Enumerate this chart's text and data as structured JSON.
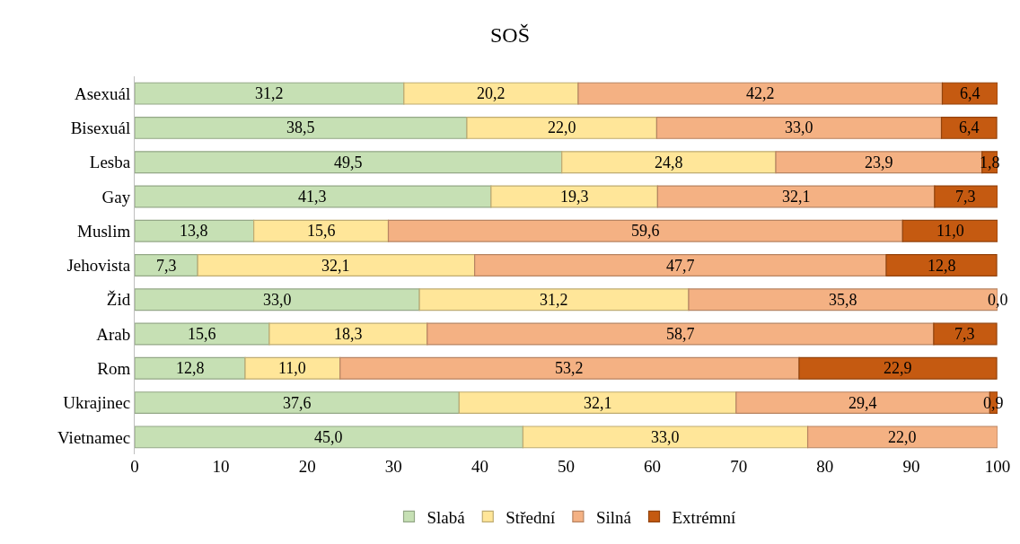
{
  "chart_data": {
    "type": "bar",
    "orientation": "horizontal",
    "stacked": true,
    "title": "SOŠ",
    "categories": [
      "Asexuál",
      "Bisexuál",
      "Lesba",
      "Gay",
      "Muslim",
      "Jehovista",
      "Žid",
      "Arab",
      "Rom",
      "Ukrajinec",
      "Vietnamec"
    ],
    "series": [
      {
        "name": "Slabá",
        "color": "#c6e0b4",
        "values": [
          31.2,
          38.5,
          49.5,
          41.3,
          13.8,
          7.3,
          33.0,
          15.6,
          12.8,
          37.6,
          45.0
        ],
        "value_labels": [
          "31,2",
          "38,5",
          "49,5",
          "41,3",
          "13,8",
          "7,3",
          "33,0",
          "15,6",
          "12,8",
          "37,6",
          "45,0"
        ]
      },
      {
        "name": "Střední",
        "color": "#ffe699",
        "values": [
          20.2,
          22.0,
          24.8,
          19.3,
          15.6,
          32.1,
          31.2,
          18.3,
          11.0,
          32.1,
          33.0
        ],
        "value_labels": [
          "20,2",
          "22,0",
          "24,8",
          "19,3",
          "15,6",
          "32,1",
          "31,2",
          "18,3",
          "11,0",
          "32,1",
          "33,0"
        ]
      },
      {
        "name": "Silná",
        "color": "#f4b183",
        "values": [
          42.2,
          33.0,
          23.9,
          32.1,
          59.6,
          47.7,
          35.8,
          58.7,
          53.2,
          29.4,
          22.0
        ],
        "value_labels": [
          "42,2",
          "33,0",
          "23,9",
          "32,1",
          "59,6",
          "47,7",
          "35,8",
          "58,7",
          "53,2",
          "29,4",
          "22,0"
        ]
      },
      {
        "name": "Extrémní",
        "color": "#c55a11",
        "values": [
          6.4,
          6.4,
          1.8,
          7.3,
          11.0,
          12.8,
          0.0,
          7.3,
          22.9,
          0.9,
          null
        ],
        "value_labels": [
          "6,4",
          "6,4",
          "1,8",
          "7,3",
          "11,0",
          "12,8",
          "0,0",
          "7,3",
          "22,9",
          "0,9",
          null
        ]
      }
    ],
    "xlim": [
      0,
      100
    ],
    "xticks": [
      0,
      10,
      20,
      30,
      40,
      50,
      60,
      70,
      80,
      90,
      100
    ],
    "legend": "bottom"
  }
}
